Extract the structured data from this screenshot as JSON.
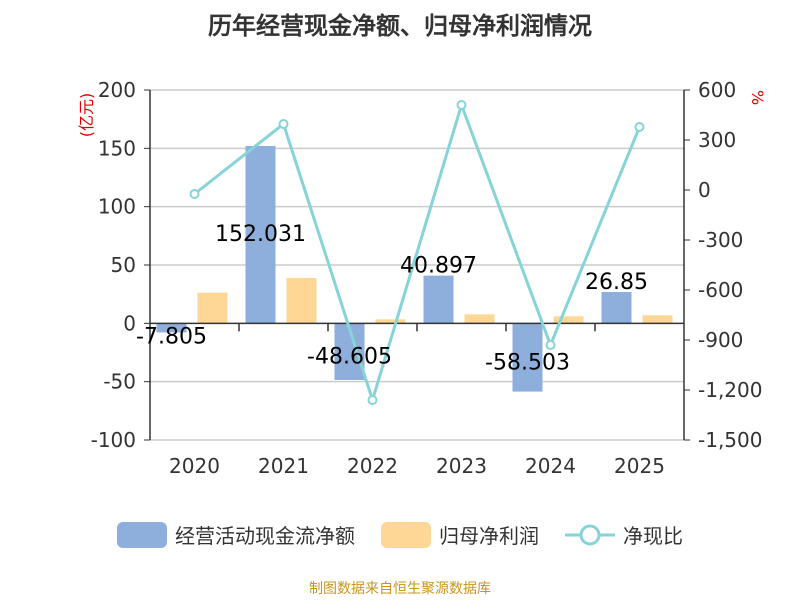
{
  "title": "历年经营现金净额、归母净利润情况",
  "source": "制图数据来自恒生聚源数据库",
  "colors": {
    "cash": "#8eaedb",
    "profit": "#fed796",
    "ratio": "#86d4d8",
    "unit": "#e00000"
  },
  "chart_data": {
    "type": "bar+line",
    "categories": [
      "2020",
      "2021",
      "2022",
      "2023",
      "2024",
      "2025"
    ],
    "left_axis": {
      "label": "(亿元)",
      "ylim": [
        -100,
        200
      ],
      "ticks": [
        "-100",
        "-50",
        "0",
        "50",
        "100",
        "150",
        "200"
      ]
    },
    "right_axis": {
      "label": "%",
      "ylim": [
        -1500,
        600
      ],
      "ticks": [
        "-1,500",
        "-1,200",
        "-900",
        "-600",
        "-300",
        "0",
        "300",
        "600"
      ]
    },
    "grid": true,
    "legend_position": "bottom",
    "series": [
      {
        "name": "经营活动现金流净额",
        "type": "bar",
        "axis": "left",
        "values": [
          -7.805,
          152.031,
          -48.605,
          40.897,
          -58.503,
          26.85
        ],
        "labels": [
          "-7.805",
          "152.031",
          "-48.605",
          "40.897",
          "-58.503",
          "26.85"
        ]
      },
      {
        "name": "归母净利润",
        "type": "bar",
        "axis": "left",
        "values": [
          26.3,
          38.9,
          3.4,
          7.7,
          6.0,
          6.9
        ]
      },
      {
        "name": "净现比",
        "type": "line",
        "axis": "right",
        "values": [
          -24,
          396,
          -1260,
          510,
          -930,
          378
        ]
      }
    ]
  }
}
